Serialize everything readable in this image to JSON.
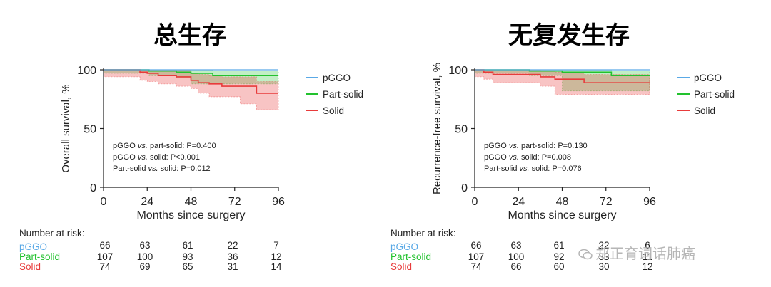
{
  "watermark": "郑正育词话肺癌",
  "colors": {
    "pggo": "#5aa9e6",
    "partsolid": "#22c22e",
    "solid": "#e83b3b",
    "axis": "#222222"
  },
  "chart_data": [
    {
      "type": "line",
      "title": "总生存",
      "xlabel": "Months since surgery",
      "ylabel": "Overall survival, %",
      "xlim": [
        0,
        96
      ],
      "ylim": [
        0,
        100
      ],
      "xticks": [
        0,
        24,
        48,
        72,
        96
      ],
      "yticks": [
        0,
        50,
        100
      ],
      "grid": false,
      "legend_placement": "right",
      "stats": [
        {
          "pre": "pGGO ",
          "vs": "vs.",
          "post": " part-solid: P=0.400"
        },
        {
          "pre": "pGGO ",
          "vs": "vs.",
          "post": " solid: P<0.001"
        },
        {
          "pre": "Part-solid ",
          "vs": "vs.",
          "post": " solid: P=0.012"
        }
      ],
      "series": [
        {
          "name": "pGGO",
          "color": "#5aa9e6",
          "x": [
            0,
            96
          ],
          "y": [
            100,
            100
          ],
          "lower": [],
          "upper": []
        },
        {
          "name": "Part-solid",
          "color": "#22c22e",
          "x": [
            0,
            25,
            40,
            48,
            60,
            96
          ],
          "y": [
            100,
            99,
            98,
            97,
            95,
            95
          ],
          "lower": [
            100,
            97,
            95,
            93,
            88,
            88
          ],
          "upper": [
            100,
            100,
            100,
            100,
            99,
            99
          ]
        },
        {
          "name": "Solid",
          "color": "#e83b3b",
          "x": [
            0,
            20,
            24,
            30,
            40,
            48,
            52,
            58,
            65,
            75,
            84,
            96
          ],
          "y": [
            100,
            98,
            97,
            95,
            94,
            91,
            89,
            88,
            86,
            86,
            80,
            80
          ],
          "lower": [
            100,
            94,
            91,
            90,
            88,
            86,
            84,
            80,
            77,
            77,
            71,
            66
          ],
          "upper": [
            100,
            100,
            100,
            100,
            100,
            97,
            96,
            95,
            94,
            94,
            90,
            90
          ]
        }
      ],
      "risk_table": {
        "header": "Number at risk:",
        "rows": [
          {
            "name": "pGGO",
            "values": [
              "66",
              "63",
              "61",
              "22",
              "7"
            ]
          },
          {
            "name": "Part-solid",
            "values": [
              "107",
              "100",
              "93",
              "36",
              "12"
            ]
          },
          {
            "name": "Solid",
            "values": [
              "74",
              "69",
              "65",
              "31",
              "14"
            ]
          }
        ]
      }
    },
    {
      "type": "line",
      "title": "无复发生存",
      "xlabel": "Months since surgery",
      "ylabel": "Recurrence-free survival, %",
      "xlim": [
        0,
        96
      ],
      "ylim": [
        0,
        100
      ],
      "xticks": [
        0,
        24,
        48,
        72,
        96
      ],
      "yticks": [
        0,
        50,
        100
      ],
      "grid": false,
      "legend_placement": "right",
      "stats": [
        {
          "pre": "pGGO ",
          "vs": "vs.",
          "post": " part-solid: P=0.130"
        },
        {
          "pre": "pGGO ",
          "vs": "vs.",
          "post": " solid: P=0.008"
        },
        {
          "pre": "Part-solid ",
          "vs": "vs.",
          "post": " solid: P=0.076"
        }
      ],
      "series": [
        {
          "name": "pGGO",
          "color": "#5aa9e6",
          "x": [
            0,
            96
          ],
          "y": [
            100,
            100
          ],
          "lower": [],
          "upper": []
        },
        {
          "name": "Part-solid",
          "color": "#22c22e",
          "x": [
            0,
            30,
            48,
            75,
            96
          ],
          "y": [
            100,
            99,
            98,
            95,
            95
          ],
          "lower": [
            100,
            97,
            95,
            82,
            82
          ],
          "upper": [
            100,
            100,
            100,
            99,
            99
          ]
        },
        {
          "name": "Solid",
          "color": "#e83b3b",
          "x": [
            0,
            5,
            10,
            36,
            44,
            60,
            96
          ],
          "y": [
            100,
            98,
            96,
            94,
            92,
            89,
            89
          ],
          "lower": [
            100,
            94,
            92,
            89,
            86,
            79,
            79
          ],
          "upper": [
            100,
            100,
            100,
            99,
            98,
            96,
            96
          ]
        }
      ],
      "risk_table": {
        "header": "Number at risk:",
        "rows": [
          {
            "name": "pGGO",
            "values": [
              "66",
              "63",
              "61",
              "22",
              "6"
            ]
          },
          {
            "name": "Part-solid",
            "values": [
              "107",
              "100",
              "92",
              "33",
              "11"
            ]
          },
          {
            "name": "Solid",
            "values": [
              "74",
              "66",
              "60",
              "30",
              "12"
            ]
          }
        ]
      }
    }
  ]
}
